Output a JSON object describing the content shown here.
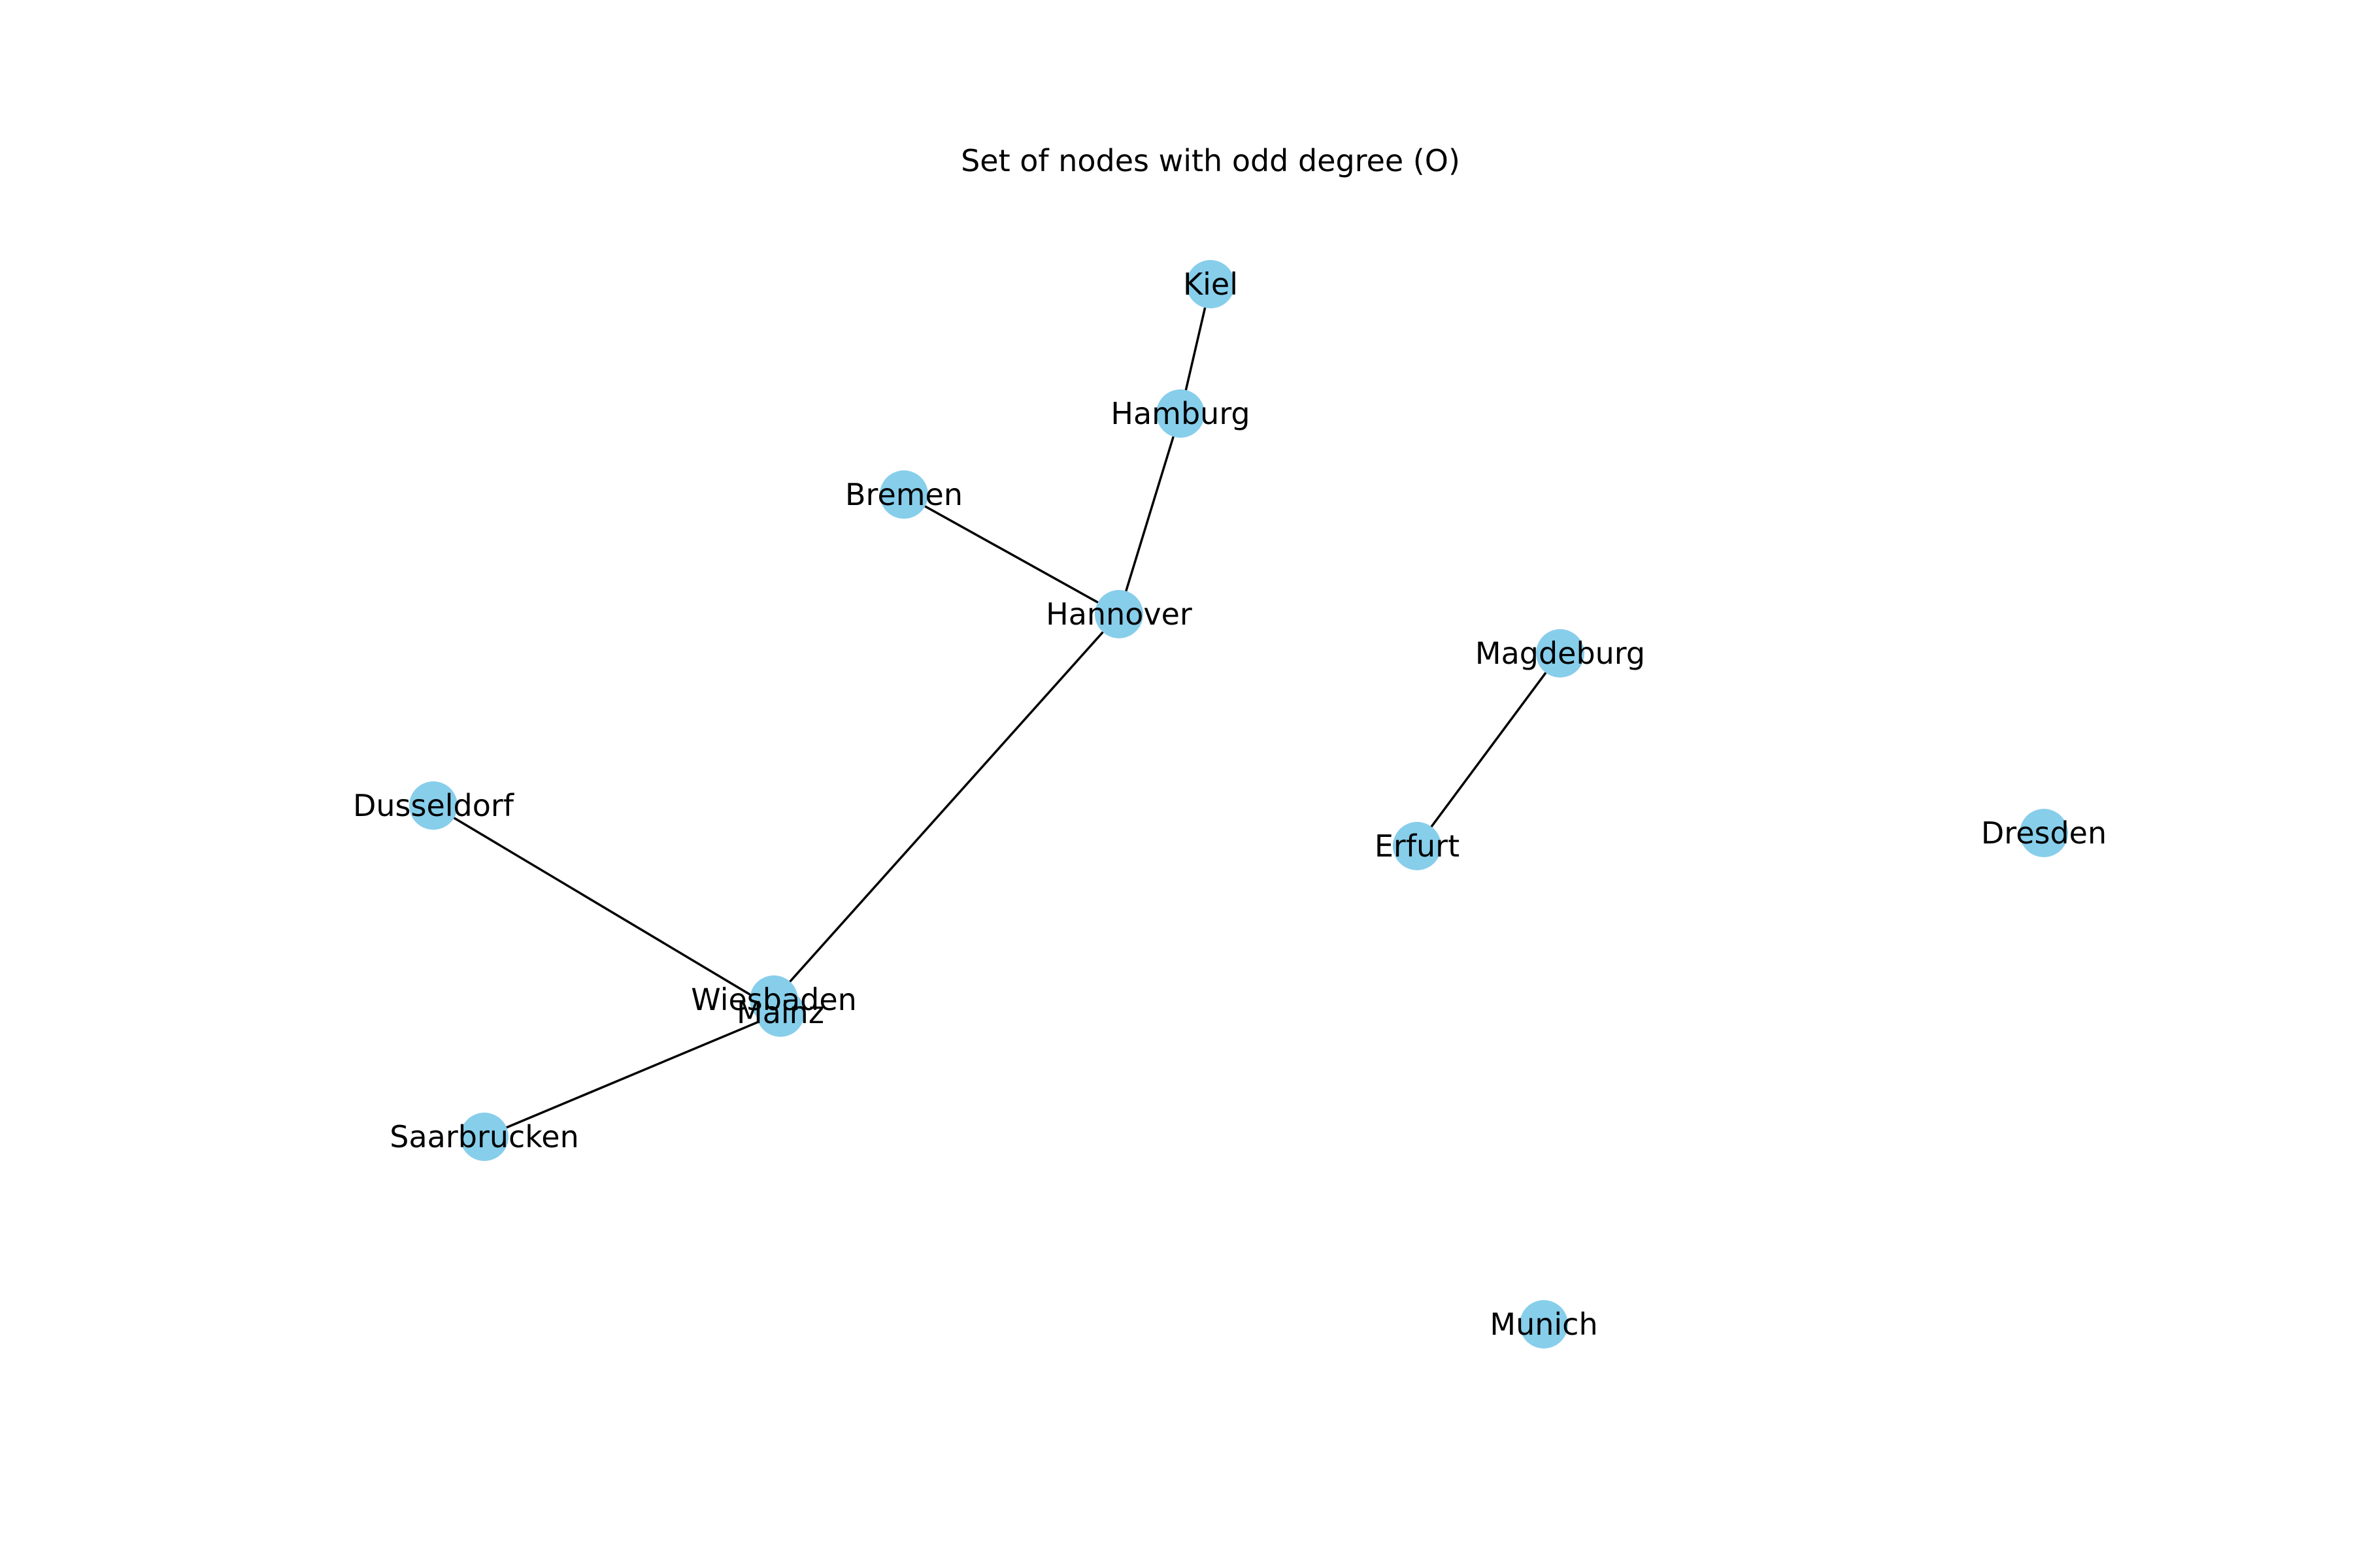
{
  "title": "Set of nodes with odd degree (O)",
  "colors": {
    "node": "#87ceeb",
    "edge": "#000000",
    "label": "#000000"
  },
  "nodes": [
    {
      "id": "kiel",
      "label": "Kiel"
    },
    {
      "id": "hamburg",
      "label": "Hamburg"
    },
    {
      "id": "bremen",
      "label": "Bremen"
    },
    {
      "id": "hannover",
      "label": "Hannover"
    },
    {
      "id": "magdeburg",
      "label": "Magdeburg"
    },
    {
      "id": "dusseldorf",
      "label": "Dusseldorf"
    },
    {
      "id": "erfurt",
      "label": "Erfurt"
    },
    {
      "id": "dresden",
      "label": "Dresden"
    },
    {
      "id": "wiesbaden",
      "label": "Wiesbaden"
    },
    {
      "id": "mainz",
      "label": "Mainz"
    },
    {
      "id": "saarbrucken",
      "label": "Saarbrucken"
    },
    {
      "id": "munich",
      "label": "Munich"
    }
  ],
  "edges": [
    {
      "from": "kiel",
      "to": "hamburg"
    },
    {
      "from": "hamburg",
      "to": "hannover"
    },
    {
      "from": "bremen",
      "to": "hannover"
    },
    {
      "from": "hannover",
      "to": "wiesbaden"
    },
    {
      "from": "dusseldorf",
      "to": "mainz"
    },
    {
      "from": "mainz",
      "to": "saarbrucken"
    },
    {
      "from": "magdeburg",
      "to": "erfurt"
    }
  ]
}
